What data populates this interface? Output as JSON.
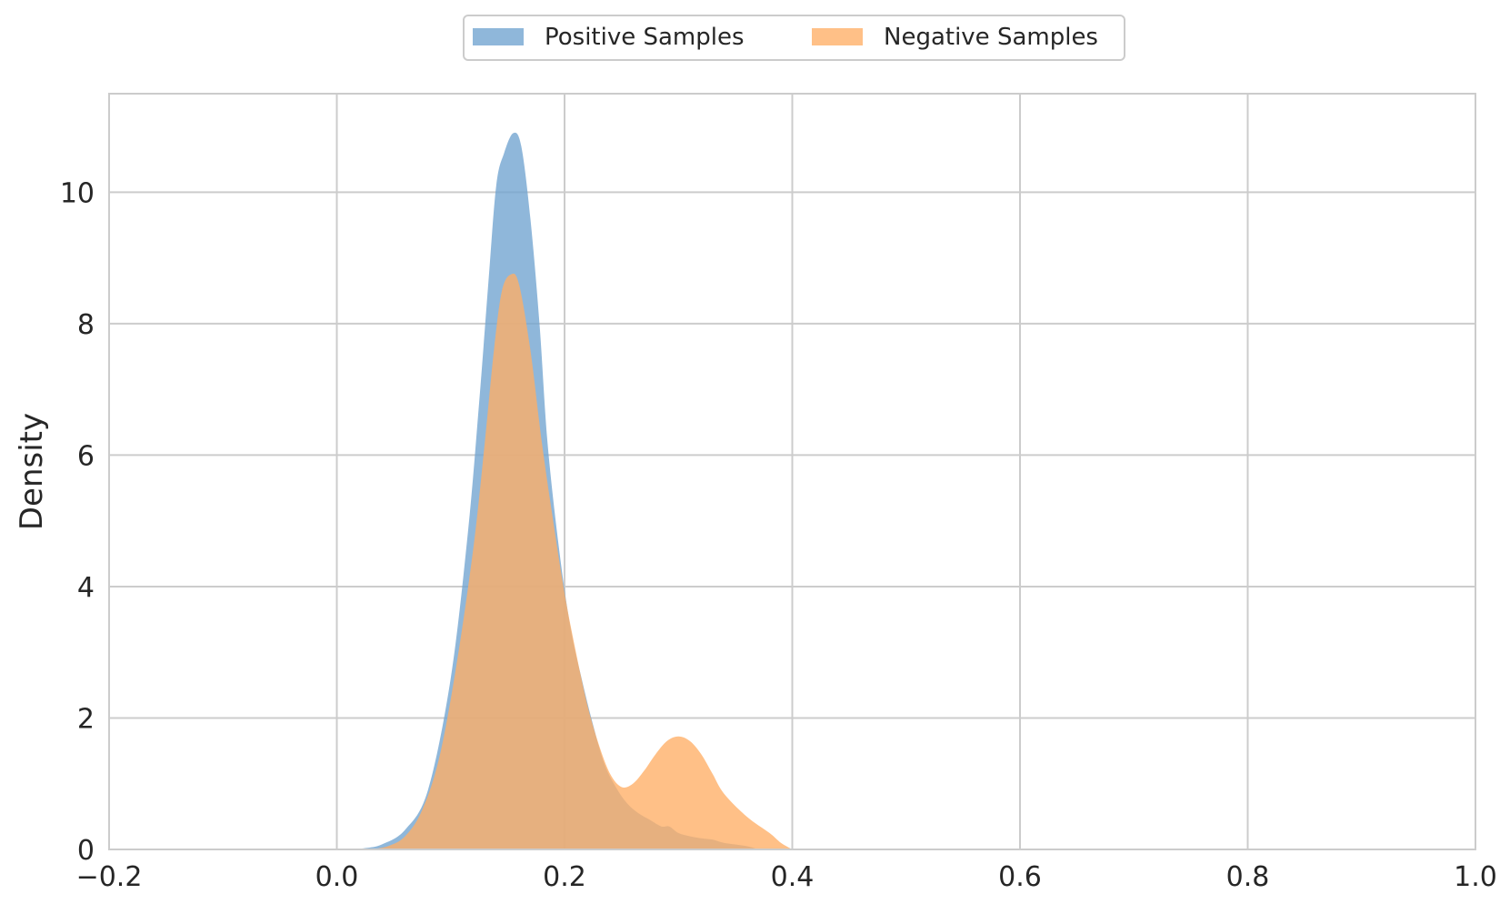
{
  "chart_data": {
    "type": "area",
    "title": "",
    "xlabel": "",
    "ylabel": "Density",
    "xlim": [
      -0.2,
      1.0
    ],
    "ylim": [
      0,
      11.5
    ],
    "x_ticks": [
      -0.2,
      0.0,
      0.2,
      0.4,
      0.6,
      0.8,
      1.0
    ],
    "x_tick_labels": [
      "−0.2",
      "0.0",
      "0.2",
      "0.4",
      "0.6",
      "0.8",
      "1.0"
    ],
    "y_ticks": [
      0,
      2,
      4,
      6,
      8,
      10
    ],
    "y_tick_labels": [
      "0",
      "2",
      "4",
      "6",
      "8",
      "10"
    ],
    "grid": true,
    "legend_position": "top-center",
    "series": [
      {
        "name": "Positive Samples",
        "color": "#6fa3cf",
        "points": [
          [
            0.01,
            0
          ],
          [
            0.025,
            0.02
          ],
          [
            0.04,
            0.08
          ],
          [
            0.06,
            0.3
          ],
          [
            0.08,
            0.9
          ],
          [
            0.1,
            2.6
          ],
          [
            0.115,
            4.8
          ],
          [
            0.125,
            6.8
          ],
          [
            0.133,
            8.6
          ],
          [
            0.14,
            10.1
          ],
          [
            0.147,
            10.6
          ],
          [
            0.155,
            10.9
          ],
          [
            0.162,
            10.7
          ],
          [
            0.17,
            9.6
          ],
          [
            0.178,
            8.0
          ],
          [
            0.185,
            6.2
          ],
          [
            0.195,
            4.6
          ],
          [
            0.205,
            3.4
          ],
          [
            0.215,
            2.6
          ],
          [
            0.225,
            1.9
          ],
          [
            0.235,
            1.3
          ],
          [
            0.245,
            0.95
          ],
          [
            0.255,
            0.7
          ],
          [
            0.265,
            0.55
          ],
          [
            0.275,
            0.45
          ],
          [
            0.285,
            0.35
          ],
          [
            0.292,
            0.35
          ],
          [
            0.3,
            0.25
          ],
          [
            0.31,
            0.2
          ],
          [
            0.32,
            0.17
          ],
          [
            0.33,
            0.15
          ],
          [
            0.34,
            0.1
          ],
          [
            0.36,
            0.05
          ],
          [
            0.37,
            0
          ]
        ]
      },
      {
        "name": "Negative Samples",
        "color": "#ffae65",
        "points": [
          [
            0.03,
            0
          ],
          [
            0.045,
            0.05
          ],
          [
            0.06,
            0.2
          ],
          [
            0.075,
            0.6
          ],
          [
            0.09,
            1.4
          ],
          [
            0.105,
            2.8
          ],
          [
            0.12,
            4.6
          ],
          [
            0.13,
            6.2
          ],
          [
            0.138,
            7.6
          ],
          [
            0.145,
            8.5
          ],
          [
            0.153,
            8.75
          ],
          [
            0.16,
            8.6
          ],
          [
            0.17,
            7.6
          ],
          [
            0.18,
            6.2
          ],
          [
            0.19,
            5.0
          ],
          [
            0.2,
            3.9
          ],
          [
            0.21,
            3.0
          ],
          [
            0.22,
            2.2
          ],
          [
            0.23,
            1.6
          ],
          [
            0.24,
            1.15
          ],
          [
            0.25,
            0.95
          ],
          [
            0.26,
            1.0
          ],
          [
            0.27,
            1.2
          ],
          [
            0.28,
            1.45
          ],
          [
            0.29,
            1.65
          ],
          [
            0.3,
            1.72
          ],
          [
            0.31,
            1.65
          ],
          [
            0.32,
            1.45
          ],
          [
            0.33,
            1.15
          ],
          [
            0.34,
            0.85
          ],
          [
            0.36,
            0.5
          ],
          [
            0.38,
            0.25
          ],
          [
            0.39,
            0.1
          ],
          [
            0.4,
            0
          ]
        ]
      }
    ]
  }
}
